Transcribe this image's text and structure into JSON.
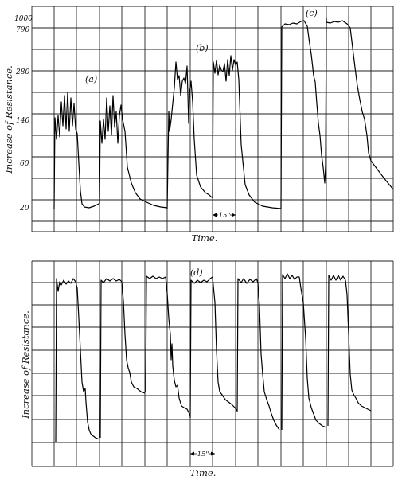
{
  "chart_data": [
    {
      "type": "line",
      "panel": "upper",
      "ylabel": "Increase of Resistance.",
      "xlabel": "Time.",
      "y_ticks": [
        "1000",
        "790",
        "280",
        "140",
        "60",
        "20"
      ],
      "scale_marker": "15\"",
      "curve_labels": [
        "(a)",
        "(b)",
        "(c)"
      ],
      "grid": true
    },
    {
      "type": "line",
      "panel": "lower",
      "ylabel": "Increase of Resistance.",
      "xlabel": "Time.",
      "y_ticks": [],
      "scale_marker": "15\"",
      "curve_labels": [
        "(d)"
      ],
      "grid": true
    }
  ]
}
